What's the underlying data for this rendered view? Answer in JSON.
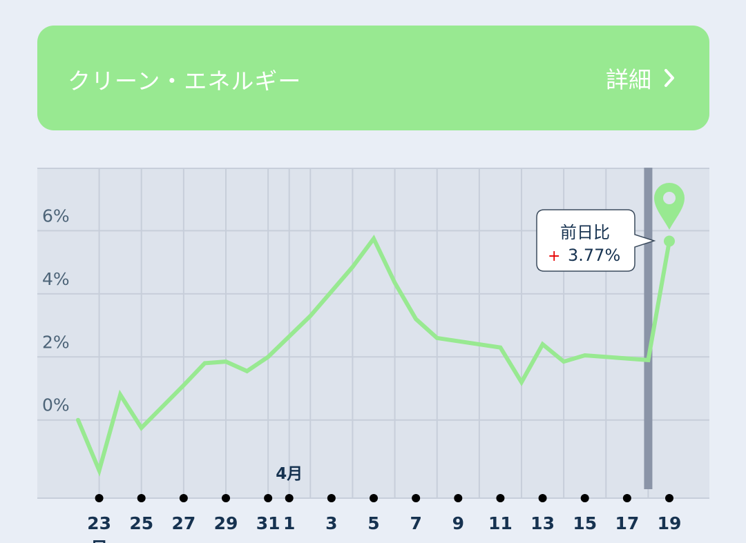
{
  "header": {
    "title": "クリーン・エネルギー",
    "detail_label": "詳細",
    "chevron_icon": "chevron-right-icon"
  },
  "colors": {
    "background": "#e9eef6",
    "header_bg": "#98e991",
    "plot_bg": "#dde3ec",
    "grid": "#c7ceda",
    "line": "#98e991",
    "tick_text": "#4d6478",
    "date_text": "#163250",
    "marker_bar": "#8a94a7",
    "plus_sign": "#e60000"
  },
  "chart_data": {
    "type": "line",
    "title": "",
    "xlabel": "",
    "ylabel": "",
    "ylim": [
      -2.5,
      8
    ],
    "yticks": [
      {
        "value": 0,
        "label": "0%"
      },
      {
        "value": 2,
        "label": "2%"
      },
      {
        "value": 4,
        "label": "4%"
      },
      {
        "value": 6,
        "label": "6%"
      }
    ],
    "grid": true,
    "x_domain": [
      "2024-03-22",
      "2024-04-19"
    ],
    "xticks": [
      {
        "date": "2024-03-23",
        "label": "23"
      },
      {
        "date": "2024-03-25",
        "label": "25"
      },
      {
        "date": "2024-03-27",
        "label": "27"
      },
      {
        "date": "2024-03-29",
        "label": "29"
      },
      {
        "date": "2024-03-31",
        "label": "31"
      },
      {
        "date": "2024-04-01",
        "label": "1"
      },
      {
        "date": "2024-04-03",
        "label": "3"
      },
      {
        "date": "2024-04-05",
        "label": "5"
      },
      {
        "date": "2024-04-07",
        "label": "7"
      },
      {
        "date": "2024-04-09",
        "label": "9"
      },
      {
        "date": "2024-04-11",
        "label": "11"
      },
      {
        "date": "2024-04-13",
        "label": "13"
      },
      {
        "date": "2024-04-15",
        "label": "15"
      },
      {
        "date": "2024-04-17",
        "label": "17"
      },
      {
        "date": "2024-04-19",
        "label": "19"
      }
    ],
    "month_label": {
      "date": "2024-04-01",
      "label": "4月"
    },
    "partial_month_label": "日",
    "series": [
      {
        "values": [
          {
            "x": "2024-03-22",
            "y": 0.0
          },
          {
            "x": "2024-03-23",
            "y": -1.6
          },
          {
            "x": "2024-03-24",
            "y": 0.8
          },
          {
            "x": "2024-03-25",
            "y": -0.25
          },
          {
            "x": "2024-03-27",
            "y": 1.1
          },
          {
            "x": "2024-03-28",
            "y": 1.8
          },
          {
            "x": "2024-03-29",
            "y": 1.85
          },
          {
            "x": "2024-03-30",
            "y": 1.55
          },
          {
            "x": "2024-03-31",
            "y": 2.0
          },
          {
            "x": "2024-04-02",
            "y": 3.3
          },
          {
            "x": "2024-04-04",
            "y": 4.85
          },
          {
            "x": "2024-04-05",
            "y": 5.75
          },
          {
            "x": "2024-04-06",
            "y": 4.35
          },
          {
            "x": "2024-04-07",
            "y": 3.2
          },
          {
            "x": "2024-04-08",
            "y": 2.6
          },
          {
            "x": "2024-04-11",
            "y": 2.3
          },
          {
            "x": "2024-04-12",
            "y": 1.2
          },
          {
            "x": "2024-04-13",
            "y": 2.4
          },
          {
            "x": "2024-04-14",
            "y": 1.85
          },
          {
            "x": "2024-04-15",
            "y": 2.05
          },
          {
            "x": "2024-04-18",
            "y": 1.9
          },
          {
            "x": "2024-04-19",
            "y": 5.67
          }
        ]
      }
    ],
    "highlight_date": "2024-04-18",
    "callout": {
      "date": "2024-04-19",
      "title": "前日比",
      "sign": "+",
      "value": "3.77%"
    }
  }
}
